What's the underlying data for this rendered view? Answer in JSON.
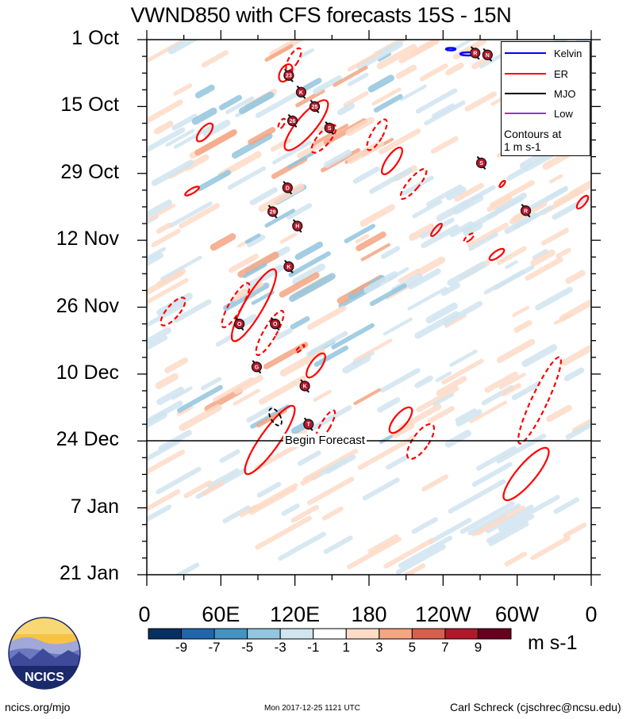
{
  "chart_data": {
    "type": "heatmap",
    "title": "VWND850 with CFS forecasts  15S - 15N",
    "y_ticks": [
      "1 Oct",
      "15 Oct",
      "29 Oct",
      "12 Nov",
      "26 Nov",
      "10 Dec",
      "24 Dec",
      "7 Jan",
      "21 Jan"
    ],
    "x_ticks": [
      "0",
      "60E",
      "120E",
      "180",
      "120W",
      "60W",
      "0"
    ],
    "x_range_deg": [
      0,
      360
    ],
    "y_range_days": [
      0,
      112
    ],
    "forecast_start_day": 84,
    "forecast_label": "Begin Forecast",
    "colorbar": {
      "ticks": [
        "-9",
        "-7",
        "-5",
        "-3",
        "-1",
        "1",
        "3",
        "5",
        "7",
        "9"
      ],
      "colors": [
        "#053061",
        "#2166ac",
        "#4393c3",
        "#92c5de",
        "#d1e5f0",
        "#ffffff",
        "#fddbc7",
        "#f4a582",
        "#d6604d",
        "#b2182b",
        "#67001f"
      ],
      "units": "m s-1"
    },
    "legend": {
      "items": [
        {
          "label": "Kelvin",
          "color": "#0000ff"
        },
        {
          "label": "ER",
          "color": "#ff0000"
        },
        {
          "label": "MJO",
          "color": "#000000"
        },
        {
          "label": "Low",
          "color": "#9933cc"
        }
      ],
      "note_line1": "Contours at",
      "note_line2": "1 m s-1"
    },
    "storms": [
      {
        "label": "23",
        "lon": 115,
        "day": 7.5
      },
      {
        "label": "K",
        "lon": 125,
        "day": 11
      },
      {
        "label": "25",
        "lon": 136,
        "day": 14
      },
      {
        "label": "26",
        "lon": 118,
        "day": 17
      },
      {
        "label": "S",
        "lon": 148,
        "day": 18.5
      },
      {
        "label": "R",
        "lon": 266,
        "day": 2.8
      },
      {
        "label": "N",
        "lon": 276,
        "day": 3.2
      },
      {
        "label": "S",
        "lon": 271,
        "day": 25.8
      },
      {
        "label": "D",
        "lon": 114,
        "day": 31
      },
      {
        "label": "29",
        "lon": 102,
        "day": 36
      },
      {
        "label": "R",
        "lon": 307,
        "day": 35.8
      },
      {
        "label": "H",
        "lon": 122,
        "day": 39
      },
      {
        "label": "K",
        "lon": 115,
        "day": 47.5
      },
      {
        "label": "O",
        "lon": 75,
        "day": 59.5
      },
      {
        "label": "O",
        "lon": 104,
        "day": 59.5
      },
      {
        "label": "G",
        "lon": 89,
        "day": 68.5
      },
      {
        "label": "K",
        "lon": 128,
        "day": 72.5
      },
      {
        "label": "T",
        "lon": 131,
        "day": 80.5
      }
    ]
  },
  "footer": {
    "website": "ncics.org/mjo",
    "timestamp": "Mon 2017-12-25 1121 UTC",
    "author": "Carl Schreck (cjschrec@ncsu.edu)"
  },
  "logo": {
    "text": "NCICS"
  }
}
